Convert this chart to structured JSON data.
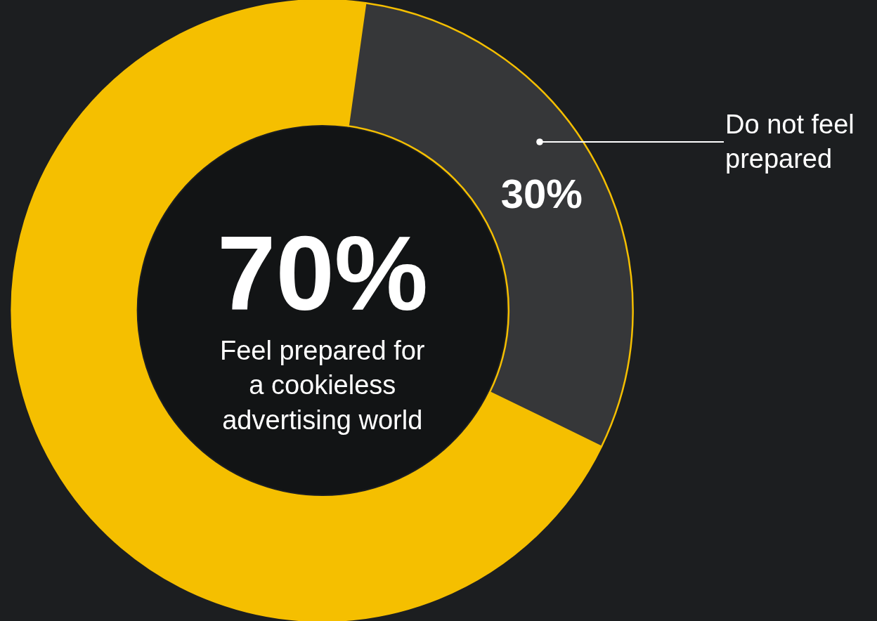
{
  "chart_data": {
    "type": "donut",
    "categories": [
      "Feel prepared for a cookieless advertising world",
      "Do not feel prepared"
    ],
    "values": [
      70,
      30
    ],
    "colors": [
      "#f5bf00",
      "#363739"
    ],
    "value_labels": [
      "70%",
      "30%"
    ],
    "legend": false
  }
}
